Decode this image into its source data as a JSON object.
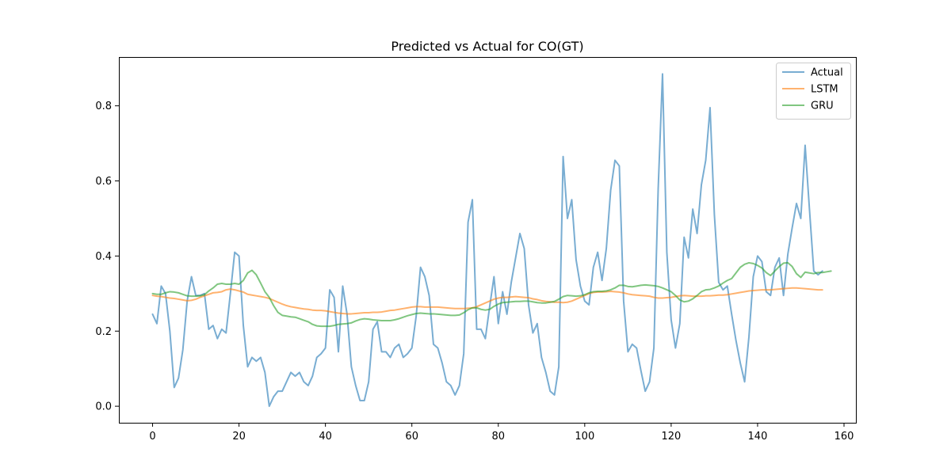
{
  "chart_data": {
    "type": "line",
    "title": "Predicted vs Actual for CO(GT)",
    "xlabel": "",
    "ylabel": "",
    "xlim": [
      -7.8,
      162.75
    ],
    "ylim": [
      -0.044,
      0.93
    ],
    "x_ticks": [
      0,
      20,
      40,
      60,
      80,
      100,
      120,
      140,
      160
    ],
    "y_ticks": [
      0.0,
      0.2,
      0.4,
      0.6,
      0.8
    ],
    "x_tick_labels": [
      "0",
      "20",
      "40",
      "60",
      "80",
      "100",
      "120",
      "140",
      "160"
    ],
    "y_tick_labels": [
      "0.0",
      "0.2",
      "0.4",
      "0.6",
      "0.8"
    ],
    "grid": false,
    "legend_position": "top-right",
    "series": [
      {
        "name": "Actual",
        "color": "#1f77b4",
        "values": [
          0.245,
          0.22,
          0.32,
          0.3,
          0.2,
          0.05,
          0.075,
          0.15,
          0.28,
          0.345,
          0.295,
          0.295,
          0.3,
          0.205,
          0.215,
          0.18,
          0.205,
          0.195,
          0.3,
          0.41,
          0.4,
          0.215,
          0.105,
          0.13,
          0.12,
          0.13,
          0.09,
          0.0,
          0.025,
          0.04,
          0.04,
          0.065,
          0.09,
          0.08,
          0.09,
          0.065,
          0.055,
          0.08,
          0.13,
          0.14,
          0.155,
          0.31,
          0.29,
          0.145,
          0.32,
          0.245,
          0.105,
          0.055,
          0.015,
          0.015,
          0.065,
          0.205,
          0.225,
          0.145,
          0.145,
          0.13,
          0.155,
          0.165,
          0.13,
          0.14,
          0.155,
          0.24,
          0.37,
          0.345,
          0.295,
          0.165,
          0.155,
          0.115,
          0.065,
          0.055,
          0.03,
          0.055,
          0.14,
          0.49,
          0.55,
          0.205,
          0.205,
          0.18,
          0.265,
          0.345,
          0.22,
          0.305,
          0.245,
          0.33,
          0.395,
          0.46,
          0.42,
          0.27,
          0.195,
          0.22,
          0.13,
          0.09,
          0.04,
          0.03,
          0.105,
          0.665,
          0.5,
          0.55,
          0.39,
          0.32,
          0.28,
          0.27,
          0.37,
          0.41,
          0.335,
          0.42,
          0.575,
          0.655,
          0.64,
          0.28,
          0.145,
          0.165,
          0.155,
          0.095,
          0.04,
          0.065,
          0.155,
          0.58,
          0.885,
          0.41,
          0.23,
          0.155,
          0.22,
          0.45,
          0.395,
          0.525,
          0.46,
          0.59,
          0.655,
          0.795,
          0.51,
          0.33,
          0.31,
          0.32,
          0.245,
          0.175,
          0.115,
          0.065,
          0.185,
          0.345,
          0.4,
          0.385,
          0.305,
          0.295,
          0.37,
          0.395,
          0.295,
          0.405,
          0.475,
          0.54,
          0.5,
          0.695,
          0.525,
          0.36,
          0.35,
          0.36
        ]
      },
      {
        "name": "LSTM",
        "color": "#ff7f0e",
        "values": [
          0.295,
          0.293,
          0.292,
          0.29,
          0.288,
          0.287,
          0.285,
          0.283,
          0.281,
          0.282,
          0.285,
          0.29,
          0.294,
          0.298,
          0.302,
          0.303,
          0.305,
          0.31,
          0.312,
          0.31,
          0.307,
          0.304,
          0.298,
          0.296,
          0.294,
          0.292,
          0.29,
          0.287,
          0.282,
          0.277,
          0.272,
          0.268,
          0.265,
          0.263,
          0.261,
          0.259,
          0.258,
          0.256,
          0.255,
          0.255,
          0.254,
          0.252,
          0.25,
          0.248,
          0.247,
          0.246,
          0.246,
          0.247,
          0.248,
          0.249,
          0.249,
          0.25,
          0.25,
          0.251,
          0.253,
          0.255,
          0.256,
          0.258,
          0.26,
          0.262,
          0.264,
          0.265,
          0.265,
          0.264,
          0.264,
          0.264,
          0.264,
          0.263,
          0.262,
          0.261,
          0.26,
          0.26,
          0.26,
          0.261,
          0.262,
          0.265,
          0.27,
          0.275,
          0.28,
          0.285,
          0.288,
          0.29,
          0.29,
          0.291,
          0.292,
          0.291,
          0.29,
          0.289,
          0.286,
          0.284,
          0.281,
          0.279,
          0.278,
          0.277,
          0.277,
          0.276,
          0.277,
          0.28,
          0.285,
          0.29,
          0.295,
          0.3,
          0.303,
          0.304,
          0.304,
          0.305,
          0.306,
          0.305,
          0.304,
          0.302,
          0.299,
          0.297,
          0.296,
          0.295,
          0.294,
          0.293,
          0.29,
          0.288,
          0.288,
          0.289,
          0.29,
          0.292,
          0.294,
          0.295,
          0.294,
          0.293,
          0.293,
          0.293,
          0.294,
          0.294,
          0.295,
          0.296,
          0.296,
          0.297,
          0.299,
          0.301,
          0.303,
          0.305,
          0.307,
          0.308,
          0.309,
          0.31,
          0.31,
          0.31,
          0.311,
          0.312,
          0.313,
          0.314,
          0.315,
          0.315,
          0.314,
          0.313,
          0.312,
          0.311,
          0.31,
          0.31
        ]
      },
      {
        "name": "GRU",
        "color": "#2ca02c",
        "values": [
          0.3,
          0.298,
          0.298,
          0.302,
          0.305,
          0.304,
          0.302,
          0.298,
          0.294,
          0.293,
          0.293,
          0.294,
          0.297,
          0.307,
          0.315,
          0.325,
          0.327,
          0.325,
          0.325,
          0.327,
          0.325,
          0.335,
          0.355,
          0.362,
          0.35,
          0.328,
          0.305,
          0.29,
          0.268,
          0.25,
          0.242,
          0.24,
          0.238,
          0.237,
          0.233,
          0.229,
          0.225,
          0.218,
          0.214,
          0.213,
          0.213,
          0.213,
          0.215,
          0.218,
          0.219,
          0.22,
          0.222,
          0.227,
          0.231,
          0.233,
          0.232,
          0.23,
          0.229,
          0.228,
          0.228,
          0.228,
          0.23,
          0.233,
          0.237,
          0.241,
          0.244,
          0.247,
          0.248,
          0.247,
          0.246,
          0.246,
          0.245,
          0.244,
          0.243,
          0.242,
          0.242,
          0.243,
          0.249,
          0.257,
          0.262,
          0.262,
          0.258,
          0.256,
          0.258,
          0.266,
          0.272,
          0.276,
          0.277,
          0.278,
          0.279,
          0.279,
          0.28,
          0.28,
          0.278,
          0.276,
          0.275,
          0.275,
          0.277,
          0.279,
          0.285,
          0.292,
          0.295,
          0.294,
          0.293,
          0.294,
          0.297,
          0.302,
          0.305,
          0.306,
          0.306,
          0.307,
          0.31,
          0.315,
          0.322,
          0.322,
          0.319,
          0.318,
          0.32,
          0.322,
          0.323,
          0.322,
          0.321,
          0.319,
          0.315,
          0.31,
          0.305,
          0.295,
          0.283,
          0.278,
          0.28,
          0.286,
          0.295,
          0.305,
          0.31,
          0.311,
          0.315,
          0.32,
          0.328,
          0.335,
          0.34,
          0.355,
          0.37,
          0.378,
          0.382,
          0.38,
          0.375,
          0.368,
          0.356,
          0.348,
          0.36,
          0.372,
          0.381,
          0.382,
          0.372,
          0.353,
          0.343,
          0.357,
          0.355,
          0.353,
          0.356,
          0.356,
          0.358,
          0.36
        ]
      }
    ]
  }
}
